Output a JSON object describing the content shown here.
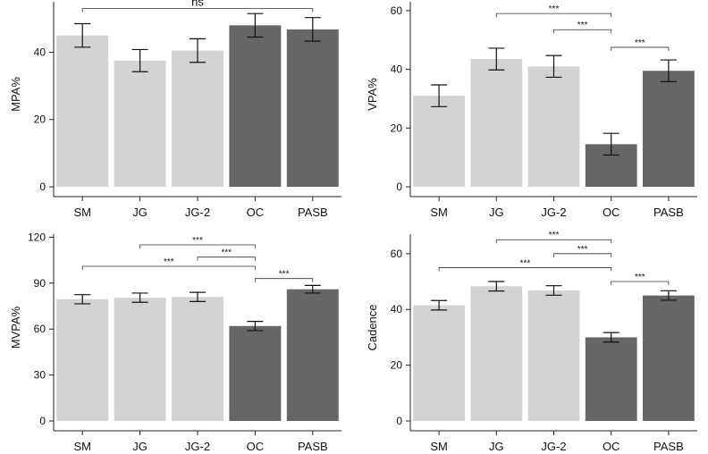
{
  "colors": {
    "light": "#d3d3d3",
    "dark": "#666666"
  },
  "chart_data": [
    {
      "type": "bar",
      "categories": [
        "SM",
        "JG",
        "JG-2",
        "OC",
        "PASB"
      ],
      "values": [
        45,
        37.5,
        40.5,
        48,
        46.8
      ],
      "errors": [
        3.5,
        3.3,
        3.5,
        3.5,
        3.5
      ],
      "shade": [
        "light",
        "light",
        "light",
        "dark",
        "dark"
      ],
      "ylabel": "MPA%",
      "ylim": [
        0,
        55
      ],
      "yticks": [
        0,
        20,
        40
      ],
      "tick_labels": [
        "0",
        "20",
        "40"
      ],
      "brackets": [
        {
          "from": 0,
          "to": 4,
          "level": 53,
          "label": "ns"
        }
      ]
    },
    {
      "type": "bar",
      "categories": [
        "SM",
        "JG",
        "JG-2",
        "OC",
        "PASB"
      ],
      "values": [
        31,
        43.5,
        41,
        14.5,
        39.5
      ],
      "errors": [
        3.7,
        3.7,
        3.7,
        3.7,
        3.7
      ],
      "shade": [
        "light",
        "light",
        "light",
        "dark",
        "dark"
      ],
      "ylabel": "VPA%",
      "ylim": [
        0,
        63
      ],
      "yticks": [
        0,
        20,
        40,
        60
      ],
      "tick_labels": [
        "0",
        "20",
        "40",
        "60"
      ],
      "brackets": [
        {
          "from": 1,
          "to": 3,
          "level": 59,
          "label": "***"
        },
        {
          "from": 2,
          "to": 3,
          "level": 53.5,
          "label": "***"
        },
        {
          "from": 3,
          "to": 4,
          "level": 47.5,
          "label": "***"
        }
      ]
    },
    {
      "type": "bar",
      "categories": [
        "SM",
        "JG",
        "JG-2",
        "OC",
        "PASB"
      ],
      "values": [
        79.5,
        80.5,
        81,
        62,
        86
      ],
      "errors": [
        3,
        3,
        3,
        3,
        2.5
      ],
      "shade": [
        "light",
        "light",
        "light",
        "dark",
        "dark"
      ],
      "ylabel": "MVPA%",
      "ylim": [
        0,
        122
      ],
      "yticks": [
        0,
        30,
        60,
        90,
        120
      ],
      "tick_labels": [
        "0",
        "30",
        "60",
        "90",
        "120"
      ],
      "brackets": [
        {
          "from": 1,
          "to": 3,
          "level": 115,
          "label": "***"
        },
        {
          "from": 2,
          "to": 3,
          "level": 107,
          "label": "***"
        },
        {
          "from": 0,
          "to": 3,
          "level": 101,
          "label": "***"
        },
        {
          "from": 3,
          "to": 4,
          "level": 93,
          "label": "***"
        }
      ]
    },
    {
      "type": "bar",
      "categories": [
        "SM",
        "JG",
        "JG-2",
        "OC",
        "PASB"
      ],
      "values": [
        41.5,
        48.3,
        46.8,
        30,
        45
      ],
      "errors": [
        1.7,
        1.7,
        1.7,
        1.7,
        1.7
      ],
      "shade": [
        "light",
        "light",
        "light",
        "dark",
        "dark"
      ],
      "ylabel": "Cadence",
      "ylim": [
        0,
        67
      ],
      "yticks": [
        0,
        20,
        40,
        60
      ],
      "tick_labels": [
        "0",
        "20",
        "40",
        "60"
      ],
      "brackets": [
        {
          "from": 1,
          "to": 3,
          "level": 65,
          "label": "***"
        },
        {
          "from": 2,
          "to": 3,
          "level": 60,
          "label": "***"
        },
        {
          "from": 0,
          "to": 3,
          "level": 55,
          "label": "***"
        },
        {
          "from": 3,
          "to": 4,
          "level": 50,
          "label": "***"
        }
      ]
    }
  ]
}
